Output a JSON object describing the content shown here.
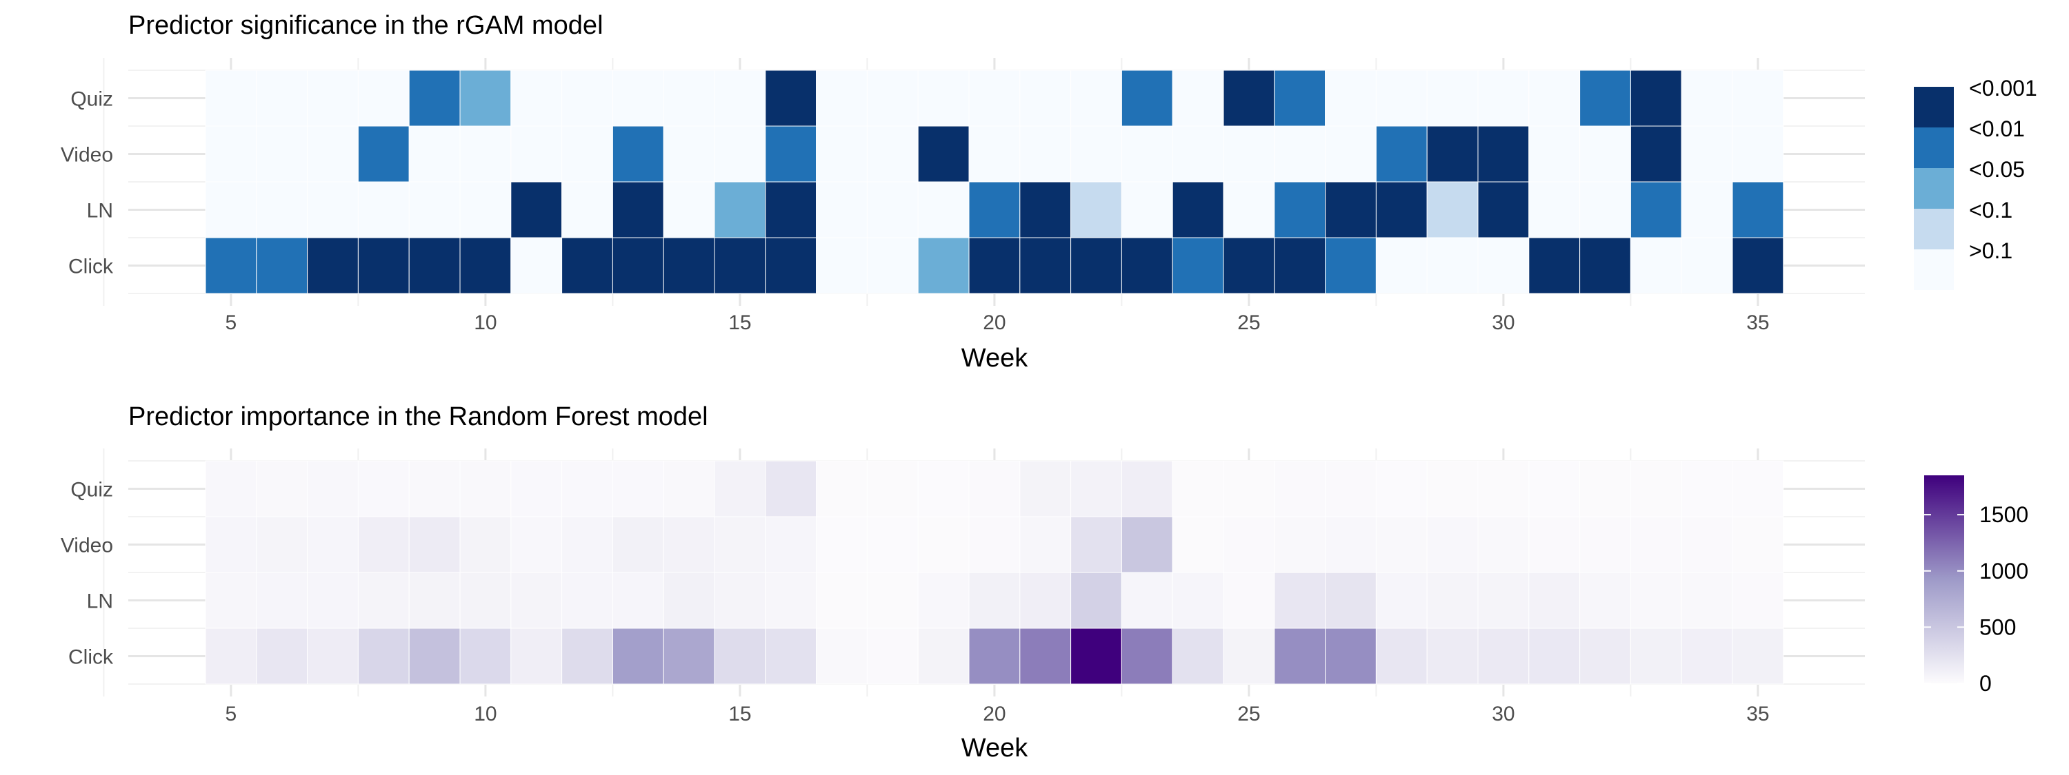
{
  "chart_data": [
    {
      "type": "heatmap",
      "title": "Predictor significance in the rGAM model",
      "xlabel": "Week",
      "ylabel": "",
      "x_ticks": [
        5,
        10,
        15,
        20,
        25,
        30,
        35
      ],
      "x_range": [
        4,
        36
      ],
      "weeks": [
        5,
        6,
        7,
        8,
        9,
        10,
        11,
        12,
        13,
        14,
        15,
        16,
        17,
        18,
        19,
        20,
        21,
        22,
        23,
        24,
        25,
        26,
        27,
        28,
        29,
        30,
        31,
        32,
        33,
        34,
        35
      ],
      "rows": [
        "Quiz",
        "Video",
        "LN",
        "Click"
      ],
      "legend": {
        "type": "discrete",
        "levels": [
          "<0.001",
          "<0.01",
          "<0.05",
          "<0.1",
          ">0.1"
        ],
        "colors": {
          "<0.001": "#08306b",
          "<0.01": "#2171b5",
          "<0.05": "#6baed6",
          "<0.1": "#c6dbef",
          ">0.1": "#f7fbff"
        }
      },
      "grid": true,
      "legend_position": "right",
      "cells": {
        "Quiz": [
          ">0.1",
          ">0.1",
          ">0.1",
          ">0.1",
          "<0.01",
          "<0.05",
          ">0.1",
          ">0.1",
          ">0.1",
          ">0.1",
          ">0.1",
          "<0.001",
          ">0.1",
          ">0.1",
          ">0.1",
          ">0.1",
          ">0.1",
          ">0.1",
          "<0.01",
          ">0.1",
          "<0.001",
          "<0.01",
          ">0.1",
          ">0.1",
          ">0.1",
          ">0.1",
          ">0.1",
          "<0.01",
          "<0.001",
          ">0.1",
          ">0.1"
        ],
        "Video": [
          ">0.1",
          ">0.1",
          ">0.1",
          "<0.01",
          ">0.1",
          ">0.1",
          ">0.1",
          ">0.1",
          "<0.01",
          ">0.1",
          ">0.1",
          "<0.01",
          ">0.1",
          ">0.1",
          "<0.001",
          ">0.1",
          ">0.1",
          ">0.1",
          ">0.1",
          ">0.1",
          ">0.1",
          ">0.1",
          ">0.1",
          "<0.01",
          "<0.001",
          "<0.001",
          ">0.1",
          ">0.1",
          "<0.001",
          ">0.1",
          ">0.1"
        ],
        "LN": [
          ">0.1",
          ">0.1",
          ">0.1",
          ">0.1",
          ">0.1",
          ">0.1",
          "<0.001",
          ">0.1",
          "<0.001",
          ">0.1",
          "<0.05",
          "<0.001",
          ">0.1",
          ">0.1",
          ">0.1",
          "<0.01",
          "<0.001",
          "<0.1",
          ">0.1",
          "<0.001",
          ">0.1",
          "<0.01",
          "<0.001",
          "<0.001",
          "<0.1",
          "<0.001",
          ">0.1",
          ">0.1",
          "<0.01",
          ">0.1",
          "<0.01"
        ],
        "Click": [
          "<0.01",
          "<0.01",
          "<0.001",
          "<0.001",
          "<0.001",
          "<0.001",
          ">0.1",
          "<0.001",
          "<0.001",
          "<0.001",
          "<0.001",
          "<0.001",
          ">0.1",
          ">0.1",
          "<0.05",
          "<0.001",
          "<0.001",
          "<0.001",
          "<0.001",
          "<0.01",
          "<0.001",
          "<0.001",
          "<0.01",
          ">0.1",
          ">0.1",
          ">0.1",
          "<0.001",
          "<0.001",
          ">0.1",
          ">0.1",
          "<0.001"
        ]
      }
    },
    {
      "type": "heatmap",
      "title": "Predictor importance in the Random Forest model",
      "xlabel": "Week",
      "ylabel": "",
      "x_ticks": [
        5,
        10,
        15,
        20,
        25,
        30,
        35
      ],
      "x_range": [
        4,
        36
      ],
      "weeks": [
        5,
        6,
        7,
        8,
        9,
        10,
        11,
        12,
        13,
        14,
        15,
        16,
        17,
        18,
        19,
        20,
        21,
        22,
        23,
        24,
        25,
        26,
        27,
        28,
        29,
        30,
        31,
        32,
        33,
        34,
        35
      ],
      "rows": [
        "Quiz",
        "Video",
        "LN",
        "Click"
      ],
      "legend": {
        "type": "continuous",
        "min": 0,
        "max": 1850,
        "ticks": [
          "0",
          "500",
          "1000",
          "1500"
        ],
        "low_color": "#fcfbfd",
        "mid_color": "#9e9ac8",
        "high_color": "#3f007d"
      },
      "grid": true,
      "legend_position": "right",
      "values": {
        "Quiz": [
          40,
          30,
          35,
          25,
          30,
          30,
          25,
          25,
          25,
          30,
          90,
          200,
          10,
          10,
          5,
          20,
          80,
          90,
          120,
          10,
          10,
          20,
          20,
          5,
          10,
          10,
          5,
          10,
          10,
          5,
          5
        ],
        "Video": [
          60,
          70,
          60,
          120,
          150,
          80,
          40,
          60,
          100,
          90,
          70,
          60,
          5,
          5,
          10,
          20,
          50,
          250,
          500,
          10,
          20,
          30,
          40,
          30,
          40,
          30,
          20,
          15,
          20,
          20,
          10
        ],
        "LN": [
          50,
          60,
          60,
          70,
          80,
          80,
          70,
          60,
          60,
          100,
          70,
          50,
          10,
          10,
          40,
          100,
          120,
          400,
          60,
          60,
          20,
          200,
          220,
          60,
          70,
          70,
          90,
          50,
          30,
          30,
          20
        ],
        "Click": [
          120,
          200,
          140,
          350,
          550,
          320,
          120,
          300,
          880,
          800,
          300,
          250,
          30,
          20,
          80,
          1000,
          1100,
          1850,
          1100,
          250,
          80,
          1000,
          1000,
          200,
          150,
          170,
          180,
          150,
          100,
          110,
          100
        ]
      }
    }
  ]
}
